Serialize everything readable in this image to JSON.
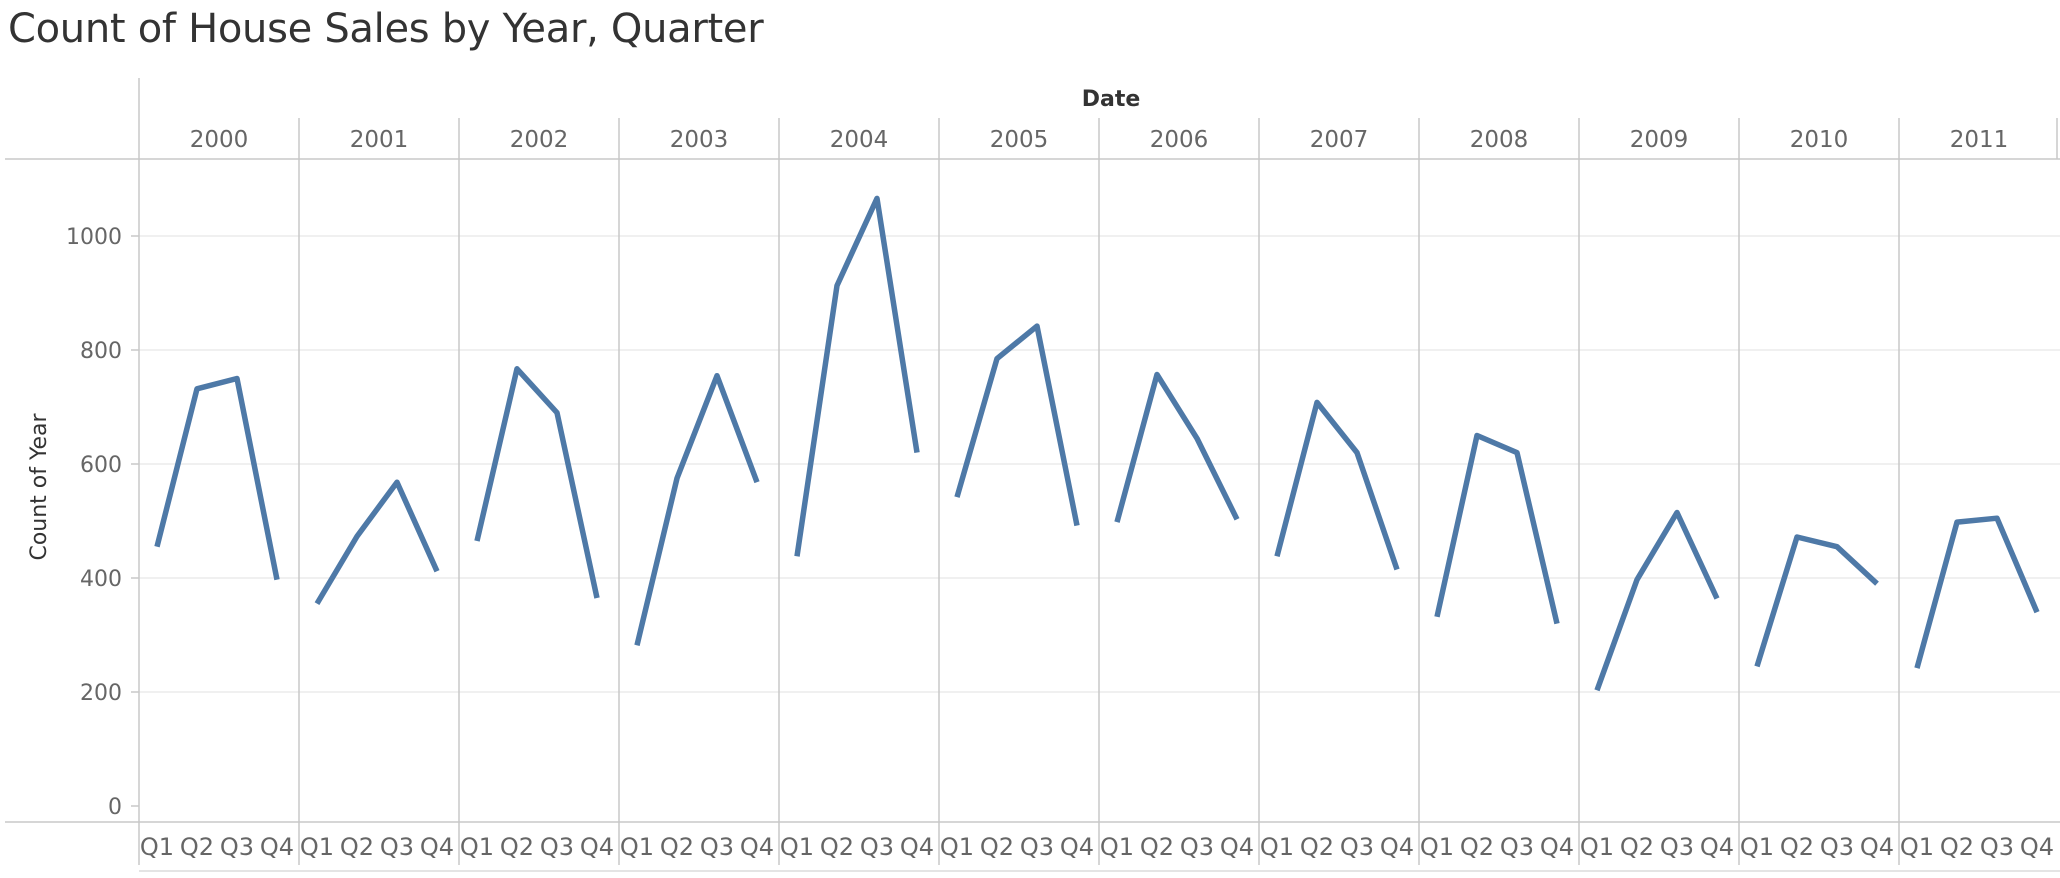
{
  "title": "Count of House Sales by Year, Quarter",
  "chart_data": {
    "type": "line",
    "title": "Count of House Sales by Year, Quarter",
    "column_header": "Date",
    "xlabel": "",
    "ylabel": "Count of Year",
    "ylim": [
      0,
      1100
    ],
    "yticks": [
      0,
      200,
      400,
      600,
      800,
      1000
    ],
    "grid": true,
    "quarters": [
      "Q1",
      "Q2",
      "Q3",
      "Q4"
    ],
    "line_color": "#4e79a7",
    "series": [
      {
        "year": "2000",
        "values": [
          455,
          732,
          750,
          397
        ]
      },
      {
        "year": "2001",
        "values": [
          355,
          473,
          568,
          412
        ]
      },
      {
        "year": "2002",
        "values": [
          465,
          767,
          690,
          365
        ]
      },
      {
        "year": "2003",
        "values": [
          282,
          575,
          755,
          568
        ]
      },
      {
        "year": "2004",
        "values": [
          438,
          913,
          1066,
          620
        ]
      },
      {
        "year": "2005",
        "values": [
          542,
          785,
          842,
          492
        ]
      },
      {
        "year": "2006",
        "values": [
          498,
          757,
          645,
          503
        ]
      },
      {
        "year": "2007",
        "values": [
          438,
          708,
          620,
          415
        ]
      },
      {
        "year": "2008",
        "values": [
          332,
          650,
          620,
          320
        ]
      },
      {
        "year": "2009",
        "values": [
          203,
          397,
          515,
          364
        ]
      },
      {
        "year": "2010",
        "values": [
          245,
          472,
          455,
          390
        ]
      },
      {
        "year": "2011",
        "values": [
          242,
          498,
          505,
          340
        ]
      }
    ]
  }
}
